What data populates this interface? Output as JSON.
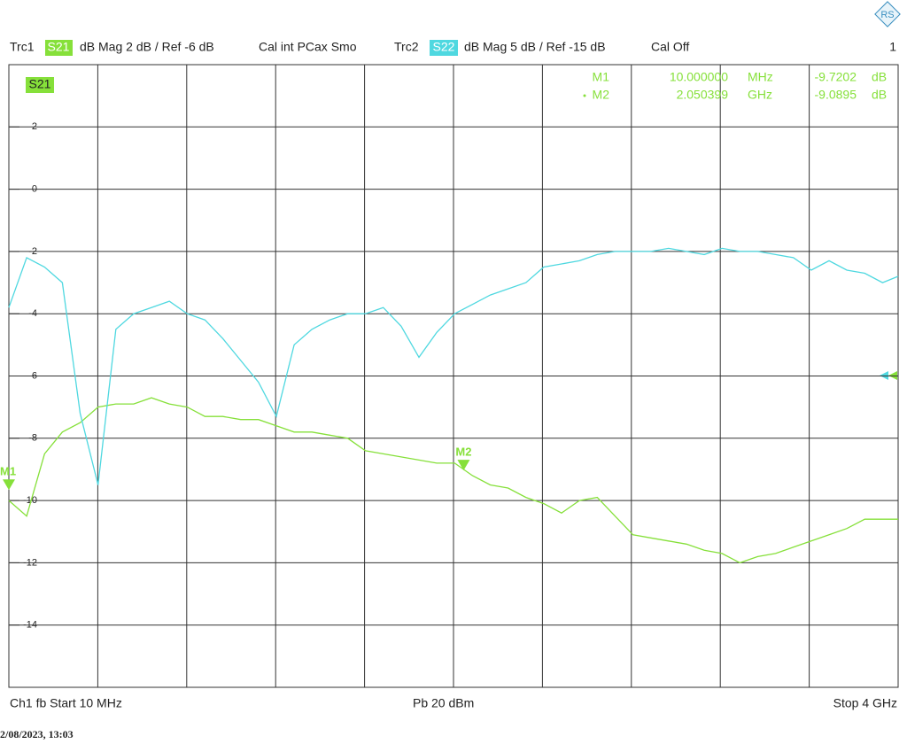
{
  "header": {
    "trc1": "Trc1",
    "trc1_format": "dB Mag 2 dB / Ref -6 dB",
    "trc1_cal": "Cal int PCax Smo",
    "trc2": "Trc2",
    "trc2_format": "dB Mag 5 dB / Ref -15 dB",
    "trc2_cal": "Cal Off",
    "channel": "1"
  },
  "chart_data": {
    "type": "line",
    "x": [
      10,
      90,
      170,
      250,
      330,
      410,
      490,
      570,
      650,
      730,
      810,
      890,
      970,
      1050,
      1130,
      1210,
      1290,
      1370,
      1450,
      1530,
      1610,
      1690,
      1770,
      1850,
      1930,
      2010,
      2090,
      2170,
      2250,
      2330,
      2410,
      2490,
      2570,
      2650,
      2730,
      2810,
      2890,
      2970,
      3050,
      3130,
      3210,
      3290,
      3370,
      3450,
      3530,
      3610,
      3690,
      3770,
      3850,
      3930,
      4000
    ],
    "xlim": [
      10,
      4000
    ],
    "ylim": [
      -16,
      4
    ],
    "yticks": [
      2,
      0,
      -2,
      -4,
      -6,
      -8,
      -10,
      -12,
      -14
    ],
    "y2lim": [
      -40,
      10
    ],
    "grid": true,
    "series": [
      {
        "name": "S21",
        "color": "#86e03a",
        "values": [
          -10.0,
          -10.5,
          -8.5,
          -7.8,
          -7.5,
          -7.0,
          -6.9,
          -6.9,
          -6.7,
          -6.9,
          -7.0,
          -7.3,
          -7.3,
          -7.4,
          -7.4,
          -7.6,
          -7.8,
          -7.8,
          -7.9,
          -8.0,
          -8.4,
          -8.5,
          -8.6,
          -8.7,
          -8.8,
          -8.8,
          -9.2,
          -9.5,
          -9.6,
          -9.9,
          -10.1,
          -10.4,
          -10.0,
          -9.9,
          -10.5,
          -11.1,
          -11.2,
          -11.3,
          -11.4,
          -11.6,
          -11.7,
          -12.0,
          -11.8,
          -11.7,
          -11.5,
          -11.3,
          -11.1,
          -10.9,
          -10.6,
          -10.6,
          -10.6
        ]
      },
      {
        "name": "S22",
        "color": "#4fd8e0",
        "axis": "y2",
        "values": [
          -9.5,
          -5.5,
          -6.25,
          -7.5,
          -18,
          -23.75,
          -11.25,
          -10,
          -9.5,
          -9,
          -10,
          -10.5,
          -12,
          -13.75,
          -15.5,
          -18.25,
          -12.5,
          -11.25,
          -10.5,
          -10,
          -10,
          -9.5,
          -11,
          -13.5,
          -11.5,
          -10,
          -9.25,
          -8.5,
          -8,
          -7.5,
          -6.25,
          -6,
          -5.75,
          -5.25,
          -5,
          -5,
          -5,
          -4.75,
          -5,
          -5.25,
          -4.75,
          -5,
          -5,
          -5.25,
          -5.5,
          -6.5,
          -5.75,
          -6.5,
          -6.75,
          -7.5,
          -7
        ]
      }
    ],
    "markers": [
      {
        "name": "M1",
        "x": 10,
        "x_label": "10.000000",
        "x_unit": "MHz",
        "value": -9.7202,
        "unit": "dB"
      },
      {
        "name": "M2",
        "x": 2050.399,
        "x_label": "2.050399",
        "x_unit": "GHz",
        "value": -9.0895,
        "unit": "dB"
      }
    ]
  },
  "footer": {
    "start": "Ch1 fb Start 10 MHz",
    "power": "Pb 20 dBm",
    "stop": "Stop 4 GHz",
    "timestamp": "2/08/2023, 13:03"
  }
}
